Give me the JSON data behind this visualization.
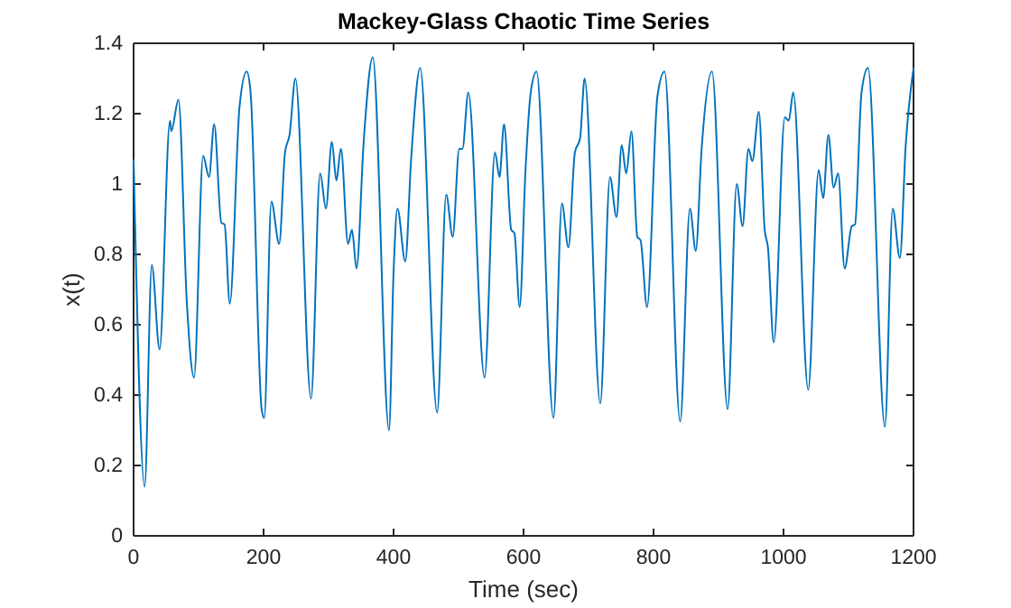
{
  "chart_data": {
    "type": "line",
    "title": "Mackey-Glass Chaotic Time Series",
    "xlabel": "Time (sec)",
    "ylabel": "x(t)",
    "xlim": [
      0,
      1200
    ],
    "xticks": [
      0,
      200,
      400,
      600,
      800,
      1000,
      1200
    ],
    "ylim": [
      0,
      1.4
    ],
    "yticks": [
      0,
      0.2,
      0.4,
      0.6,
      0.8,
      1,
      1.2,
      1.4
    ],
    "series": [
      {
        "color": "#0072bd",
        "x": [
          0,
          17,
          28,
          40,
          56,
          58,
          69,
          82,
          93,
          107,
          116,
          124,
          135,
          140,
          148,
          163,
          174,
          180,
          197,
          201,
          212,
          224,
          233,
          240,
          249,
          273,
          287,
          296,
          305,
          312,
          319,
          330,
          336,
          343,
          354,
          368,
          393,
          400,
          406,
          418,
          427,
          441,
          467,
          481,
          491,
          501,
          506,
          515,
          540,
          556,
          563,
          570,
          581,
          586,
          594,
          603,
          611,
          620,
          646,
          659,
          669,
          679,
          687,
          694,
          718,
          733,
          743,
          751,
          758,
          766,
          775,
          780,
          790,
          806,
          817,
          841,
          856,
          865,
          874,
          890,
          914,
          928,
          937,
          946,
          952,
          962,
          971,
          976,
          985,
          1002,
          1008,
          1015,
          1038,
          1054,
          1061,
          1069,
          1077,
          1084,
          1094,
          1105,
          1110,
          1120,
          1130,
          1156,
          1168,
          1179,
          1188,
          1200
        ],
        "values": [
          1.07,
          0.14,
          0.77,
          0.53,
          1.18,
          1.15,
          1.24,
          0.66,
          0.45,
          1.08,
          1.02,
          1.17,
          0.89,
          0.885,
          0.66,
          1.22,
          1.32,
          1.26,
          0.36,
          0.335,
          0.95,
          0.83,
          1.09,
          1.14,
          1.3,
          0.39,
          1.03,
          0.93,
          1.12,
          1.01,
          1.1,
          0.83,
          0.87,
          0.76,
          1.12,
          1.36,
          0.3,
          0.75,
          0.93,
          0.78,
          1.07,
          1.33,
          0.35,
          0.97,
          0.85,
          1.1,
          1.1,
          1.26,
          0.45,
          1.09,
          1.02,
          1.17,
          0.87,
          0.86,
          0.65,
          1.04,
          1.26,
          1.32,
          0.335,
          0.945,
          0.82,
          1.09,
          1.13,
          1.3,
          0.376,
          1.02,
          0.906,
          1.11,
          1.03,
          1.15,
          0.85,
          0.84,
          0.65,
          1.25,
          1.32,
          0.325,
          0.93,
          0.81,
          1.1,
          1.32,
          0.36,
          1,
          0.88,
          1.1,
          1.065,
          1.205,
          0.87,
          0.82,
          0.55,
          1.19,
          1.18,
          1.26,
          0.415,
          1.04,
          0.96,
          1.14,
          0.99,
          1.03,
          0.76,
          0.88,
          0.885,
          1.26,
          1.33,
          0.31,
          0.93,
          0.79,
          1.11,
          1.33
        ]
      }
    ]
  }
}
